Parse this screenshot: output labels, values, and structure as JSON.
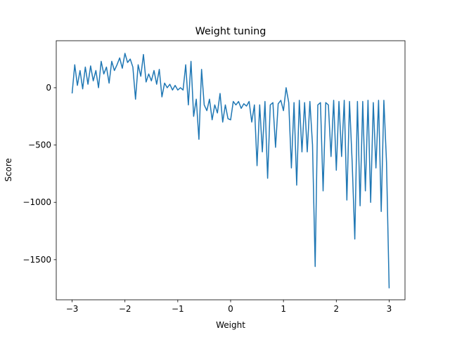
{
  "chart_data": {
    "type": "line",
    "title": "Weight tuning",
    "xlabel": "Weight",
    "ylabel": "Score",
    "color": "#1f77b4",
    "x": [
      -3.0,
      -2.95,
      -2.9,
      -2.85,
      -2.8,
      -2.75,
      -2.7,
      -2.65,
      -2.6,
      -2.55,
      -2.5,
      -2.45,
      -2.4,
      -2.35,
      -2.3,
      -2.25,
      -2.2,
      -2.15,
      -2.1,
      -2.05,
      -2.0,
      -1.95,
      -1.9,
      -1.85,
      -1.8,
      -1.75,
      -1.7,
      -1.65,
      -1.6,
      -1.55,
      -1.5,
      -1.45,
      -1.4,
      -1.35,
      -1.3,
      -1.25,
      -1.2,
      -1.15,
      -1.1,
      -1.05,
      -1.0,
      -0.95,
      -0.9,
      -0.85,
      -0.8,
      -0.75,
      -0.7,
      -0.65,
      -0.6,
      -0.55,
      -0.5,
      -0.45,
      -0.4,
      -0.35,
      -0.3,
      -0.25,
      -0.2,
      -0.15,
      -0.1,
      -0.05,
      0.0,
      0.05,
      0.1,
      0.15,
      0.2,
      0.25,
      0.3,
      0.35,
      0.4,
      0.45,
      0.5,
      0.55,
      0.6,
      0.65,
      0.7,
      0.75,
      0.8,
      0.85,
      0.9,
      0.95,
      1.0,
      1.05,
      1.1,
      1.15,
      1.2,
      1.25,
      1.3,
      1.35,
      1.4,
      1.45,
      1.5,
      1.55,
      1.6,
      1.65,
      1.7,
      1.75,
      1.8,
      1.85,
      1.9,
      1.95,
      2.0,
      2.05,
      2.1,
      2.15,
      2.2,
      2.25,
      2.3,
      2.35,
      2.4,
      2.45,
      2.5,
      2.55,
      2.6,
      2.65,
      2.7,
      2.75,
      2.8,
      2.85,
      2.9,
      2.95,
      3.0
    ],
    "values": [
      -50,
      200,
      20,
      150,
      -10,
      180,
      30,
      190,
      60,
      150,
      0,
      230,
      120,
      180,
      40,
      230,
      150,
      200,
      260,
      170,
      300,
      220,
      250,
      180,
      -100,
      200,
      100,
      290,
      50,
      120,
      60,
      150,
      30,
      160,
      -80,
      40,
      0,
      30,
      -20,
      20,
      -20,
      0,
      -20,
      200,
      -150,
      230,
      -250,
      -100,
      -450,
      160,
      -150,
      -200,
      -100,
      -280,
      -150,
      -220,
      -50,
      -300,
      -150,
      -270,
      -280,
      -120,
      -150,
      -120,
      -180,
      -140,
      -160,
      -120,
      -300,
      -150,
      -680,
      -150,
      -560,
      -120,
      -790,
      -150,
      -130,
      -520,
      -140,
      -110,
      -200,
      0,
      -130,
      -700,
      -130,
      -850,
      -110,
      -560,
      -130,
      -560,
      -120,
      -500,
      -1560,
      -150,
      -130,
      -900,
      -130,
      -150,
      -600,
      -110,
      -720,
      -120,
      -600,
      -110,
      -980,
      -120,
      -650,
      -1320,
      -120,
      -1030,
      -120,
      -900,
      -110,
      -1000,
      -130,
      -700,
      -110,
      -1080,
      -110,
      -650,
      -1750
    ],
    "xlim": [
      -3.3,
      3.3
    ],
    "ylim": [
      -1850,
      410
    ],
    "xticks": [
      {
        "value": -3,
        "label": "−3"
      },
      {
        "value": -2,
        "label": "−2"
      },
      {
        "value": -1,
        "label": "−1"
      },
      0,
      1,
      2,
      3
    ],
    "yticks": [
      {
        "value": -1500,
        "label": "−1500"
      },
      {
        "value": -1000,
        "label": "−1000"
      },
      {
        "value": -500,
        "label": "−500"
      },
      0
    ]
  }
}
